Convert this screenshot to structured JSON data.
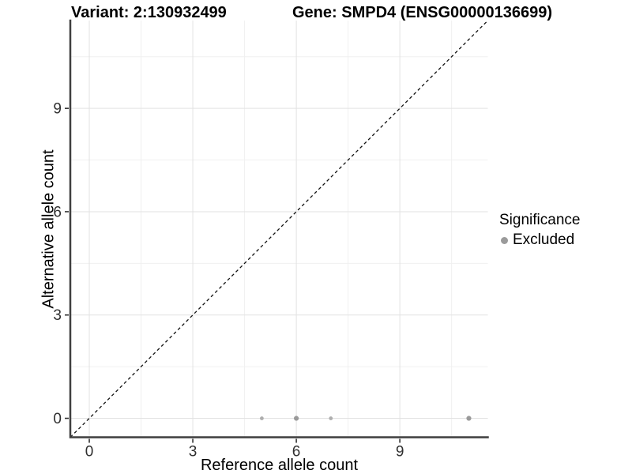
{
  "header": {
    "variant_title": "Variant: 2:130932499",
    "gene_title": "Gene: SMPD4 (ENSG00000136699)"
  },
  "legend": {
    "title": "Significance",
    "items": [
      {
        "label": "Excluded",
        "color": "#9b9b9b"
      }
    ]
  },
  "colors": {
    "background": "#ffffff",
    "grid_major": "#e2e2e2",
    "grid_minor": "#f0f0f0",
    "axis_line": "#3f3f3f",
    "tick_mark": "#333333",
    "tick_label": "#303030",
    "reference_line": "#111111"
  },
  "chart_data": {
    "type": "scatter",
    "titles": [
      "Variant: 2:130932499",
      "Gene: SMPD4 (ENSG00000136699)"
    ],
    "xlabel": "Reference allele count",
    "ylabel": "Alternative allele count",
    "xlim": [
      -0.55,
      11.55
    ],
    "ylim": [
      -0.55,
      11.55
    ],
    "x_ticks": [
      0,
      3,
      6,
      9
    ],
    "y_ticks": [
      0,
      3,
      6,
      9
    ],
    "x_minor_ticks": [
      1.5,
      4.5,
      7.5,
      10.5
    ],
    "y_minor_ticks": [
      1.5,
      4.5,
      7.5,
      10.5
    ],
    "grid": "major+minor",
    "legend_position": "right",
    "reference_line": {
      "kind": "identity",
      "style": "dashed"
    },
    "series": [
      {
        "name": "Excluded",
        "color": "#9b9b9b",
        "points": [
          {
            "x": 5,
            "y": 0,
            "r": 2.4,
            "color": "#aeaeae"
          },
          {
            "x": 6,
            "y": 0,
            "r": 3.1,
            "color": "#9a9a9a"
          },
          {
            "x": 7,
            "y": 0,
            "r": 2.4,
            "color": "#aeaeae"
          },
          {
            "x": 11,
            "y": 0,
            "r": 3.1,
            "color": "#9a9a9a"
          }
        ]
      }
    ]
  }
}
